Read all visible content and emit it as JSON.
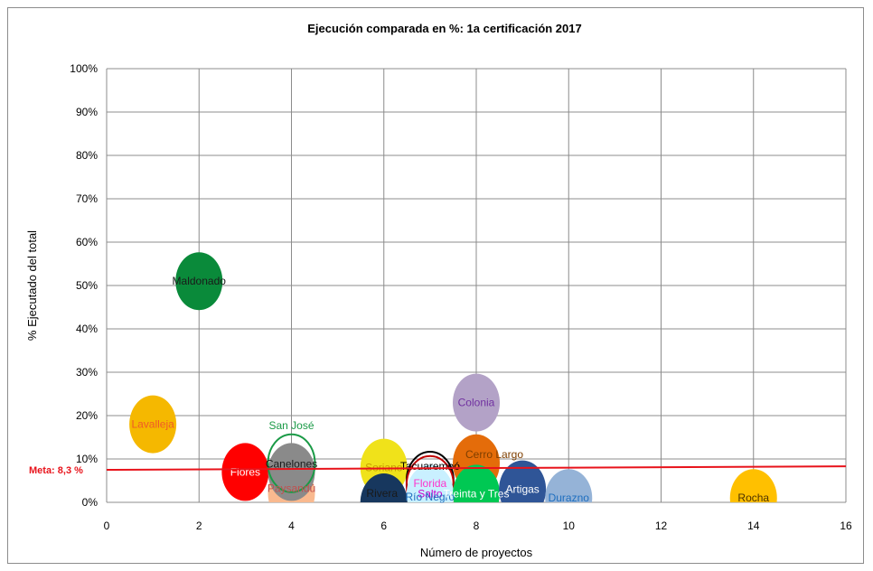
{
  "chart_data": {
    "type": "scatter",
    "title": "Ejecución comparada en %: 1a certificación 2017",
    "xlabel": "Número de proyectos",
    "ylabel": "% Ejecutado del total",
    "xlim": [
      0,
      16
    ],
    "ylim": [
      0,
      100
    ],
    "x_ticks": [
      "0",
      "2",
      "4",
      "6",
      "8",
      "10",
      "12",
      "14",
      "16"
    ],
    "y_ticks": [
      "0%",
      "10%",
      "20%",
      "30%",
      "40%",
      "50%",
      "60%",
      "70%",
      "80%",
      "90%",
      "100%"
    ],
    "grid": true,
    "meta_line": {
      "label": "Meta: 8,3 %",
      "y_start": 7.5,
      "y_end": 8.3,
      "color": "#e8131b"
    },
    "points": [
      {
        "name": "Maldonado",
        "x": 2,
        "y": 51,
        "color": "#0a8a3a",
        "label_color": "#1a1a1a",
        "style": "fill"
      },
      {
        "name": "Lavalleja",
        "x": 1,
        "y": 18,
        "color": "#f5b800",
        "label_color": "#f05a28",
        "style": "fill"
      },
      {
        "name": "Flores",
        "x": 3,
        "y": 7,
        "color": "#ff0000",
        "label_color": "#ffffff",
        "style": "fill"
      },
      {
        "name": "Paysandú",
        "x": 4,
        "y": 2,
        "color": "#f9b98f",
        "label_color": "#c0504d",
        "style": "fill"
      },
      {
        "name": "Canelones",
        "x": 4,
        "y": 7,
        "color": "#8a8a8a",
        "label_color": "#1a1a1a",
        "style": "fill"
      },
      {
        "name": "San José",
        "x": 4,
        "y": 9,
        "color": "#1a9a46",
        "label_color": "#1a9a46",
        "style": "outline"
      },
      {
        "name": "Soriano",
        "x": 6,
        "y": 8,
        "color": "#f0e21a",
        "label_color": "#c8a000",
        "style": "fill"
      },
      {
        "name": "Rivera",
        "x": 6,
        "y": 0,
        "color": "#17375e",
        "label_color": "#1a1a1a",
        "style": "fill"
      },
      {
        "name": "Tacuarembó",
        "x": 7,
        "y": 5,
        "color": "#000000",
        "label_color": "#000000",
        "style": "outline"
      },
      {
        "name": "Florida",
        "x": 7,
        "y": 4,
        "color": "#c00000",
        "label_color": "#ff33cc",
        "style": "outline"
      },
      {
        "name": "Salto",
        "x": 7,
        "y": 2,
        "color": "#c9f0ff",
        "label_color": "#cc00cc",
        "style": "fill"
      },
      {
        "name": "Río Negro",
        "x": 7,
        "y": 0,
        "color": "#ffffff",
        "label_color": "#1f6fbf",
        "style": "none"
      },
      {
        "name": "Cerro Largo",
        "x": 8,
        "y": 9,
        "color": "#e46c0a",
        "label_color": "#7f3f00",
        "style": "fill"
      },
      {
        "name": "Treinta y Tres",
        "x": 8,
        "y": 2,
        "color": "#00c853",
        "label_color": "#ffffff",
        "style": "fill"
      },
      {
        "name": "Colonia",
        "x": 8,
        "y": 23,
        "color": "#b3a2c7",
        "label_color": "#7030a0",
        "style": "fill"
      },
      {
        "name": "Artigas",
        "x": 9,
        "y": 3,
        "color": "#2f5597",
        "label_color": "#ffffff",
        "style": "fill"
      },
      {
        "name": "Durazno",
        "x": 10,
        "y": 1,
        "color": "#95b3d7",
        "label_color": "#1f6fbf",
        "style": "fill"
      },
      {
        "name": "Rocha",
        "x": 14,
        "y": 1,
        "color": "#ffc000",
        "label_color": "#4d3300",
        "style": "fill"
      }
    ]
  }
}
